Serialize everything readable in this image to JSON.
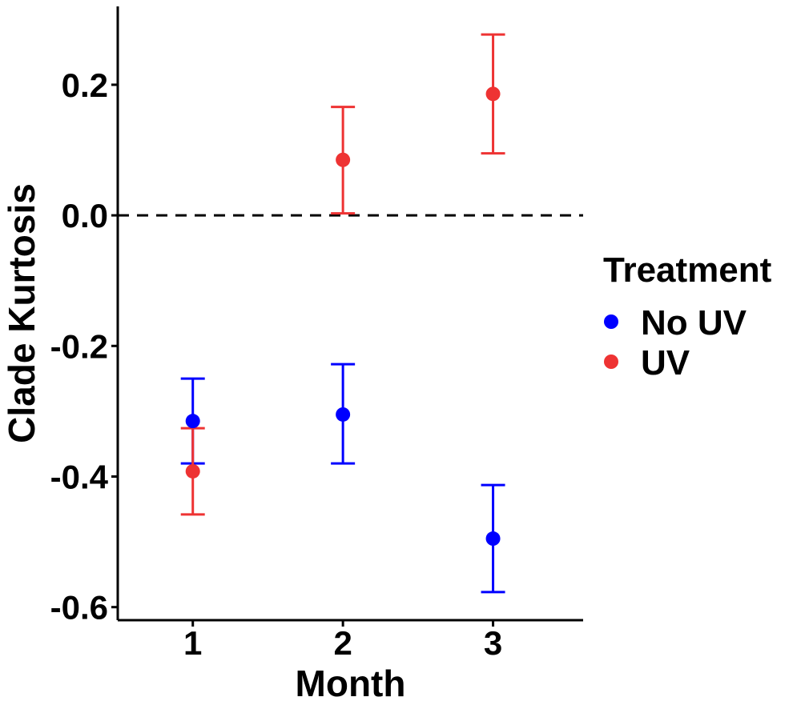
{
  "chart_data": {
    "type": "scatter",
    "title": "",
    "xlabel": "Month",
    "ylabel": "Clade Kurtosis",
    "x": [
      1,
      2,
      3
    ],
    "x_tick_labels": [
      "1",
      "2",
      "3"
    ],
    "xlim": [
      0.5,
      3.6
    ],
    "ylim": [
      -0.62,
      0.32
    ],
    "y_ticks": [
      -0.6,
      -0.4,
      -0.2,
      0.0,
      0.2
    ],
    "y_tick_labels": [
      "-0.6",
      "-0.4",
      "-0.2",
      "0.0",
      "0.2"
    ],
    "reference_line": {
      "y": 0.0,
      "style": "dashed"
    },
    "grid": false,
    "legend": {
      "title": "Treatment",
      "position": "right"
    },
    "series": [
      {
        "name": "No UV",
        "color": "#0000ff",
        "values": [
          -0.315,
          -0.305,
          -0.495
        ],
        "lower": [
          -0.38,
          -0.38,
          -0.577
        ],
        "upper": [
          -0.25,
          -0.228,
          -0.413
        ]
      },
      {
        "name": "UV",
        "color": "#ee3333",
        "values": [
          -0.392,
          0.085,
          0.186
        ],
        "lower": [
          -0.458,
          0.003,
          0.095
        ],
        "upper": [
          -0.326,
          0.166,
          0.277
        ]
      }
    ]
  }
}
